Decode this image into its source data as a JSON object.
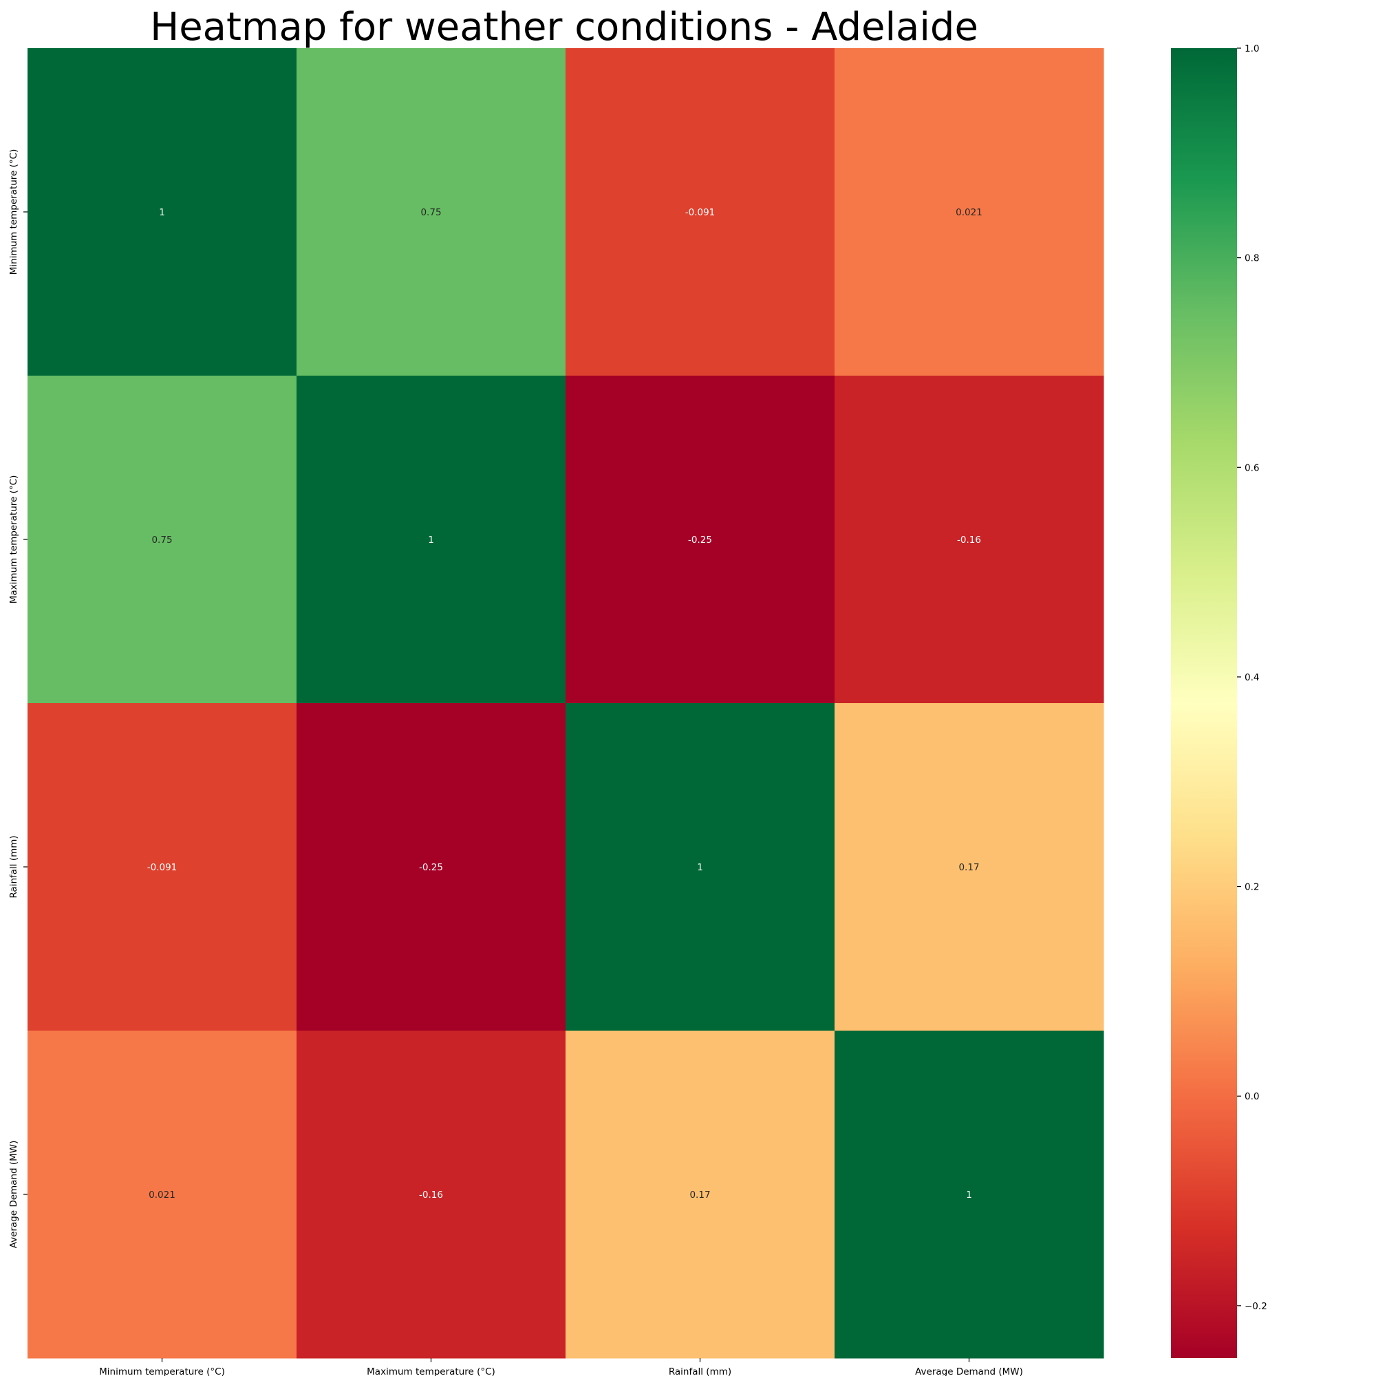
{
  "chart_data": {
    "type": "heatmap",
    "title": "Heatmap for weather conditions - Adelaide",
    "rows": [
      "Minimum temperature (°C)",
      "Maximum temperature (°C)",
      "Rainfall (mm)",
      "Average Demand (MW)"
    ],
    "columns": [
      "Minimum temperature (°C)",
      "Maximum temperature (°C)",
      "Rainfall (mm)",
      "Average Demand (MW)"
    ],
    "values": [
      [
        1,
        0.75,
        -0.091,
        0.021
      ],
      [
        0.75,
        1,
        -0.25,
        -0.16
      ],
      [
        -0.091,
        -0.25,
        1,
        0.17
      ],
      [
        0.021,
        -0.16,
        0.17,
        1
      ]
    ],
    "cell_labels": [
      [
        "1",
        "0.75",
        "-0.091",
        "0.021"
      ],
      [
        "0.75",
        "1",
        "-0.25",
        "-0.16"
      ],
      [
        "-0.091",
        "-0.25",
        "1",
        "0.17"
      ],
      [
        "0.021",
        "-0.16",
        "0.17",
        "1"
      ]
    ],
    "colormap": "RdYlGn",
    "value_range": [
      -0.25,
      1
    ],
    "colorbar": {
      "ticks": [
        -0.2,
        0.0,
        0.2,
        0.4,
        0.6,
        0.8,
        1.0
      ],
      "tick_labels": [
        "−0.2",
        "0.0",
        "0.2",
        "0.4",
        "0.6",
        "0.8",
        "1.0"
      ],
      "placement": "right"
    },
    "annotated": true,
    "grid": false
  }
}
